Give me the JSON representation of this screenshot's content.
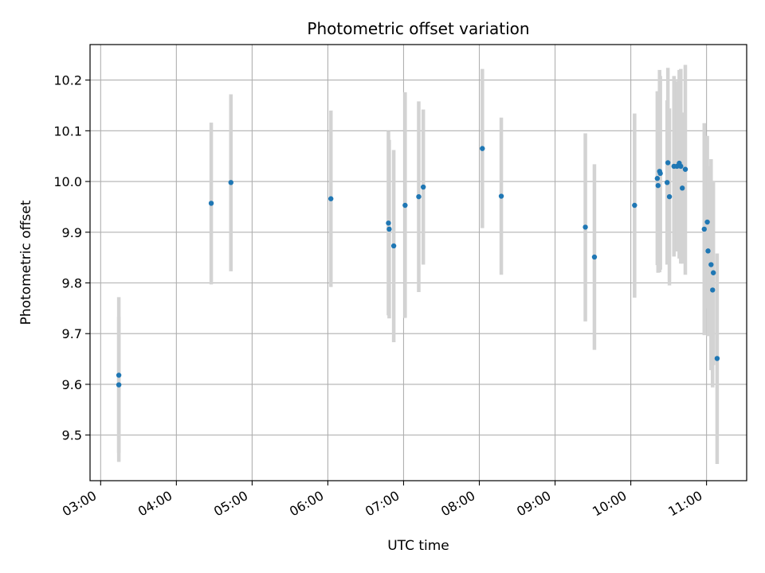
{
  "chart_data": {
    "type": "scatter",
    "title": "Photometric offset variation",
    "xlabel": "UTC time",
    "ylabel": "Photometric offset",
    "x_tick_labels": [
      "03:00",
      "04:00",
      "05:00",
      "06:00",
      "07:00",
      "08:00",
      "09:00",
      "10:00",
      "11:00"
    ],
    "x_tick_values": [
      3,
      4,
      5,
      6,
      7,
      8,
      9,
      10,
      11
    ],
    "y_ticks": [
      9.5,
      9.6,
      9.7,
      9.8,
      9.9,
      10.0,
      10.1,
      10.2
    ],
    "xlim": [
      2.86,
      11.53
    ],
    "ylim": [
      9.41,
      10.27
    ],
    "grid": true,
    "marker_color": "#1f77b4",
    "errorbar_color": "#d3d3d3",
    "points": [
      {
        "x": 3.24,
        "y": 9.618,
        "lo": 9.465,
        "hi": 9.772
      },
      {
        "x": 3.24,
        "y": 9.599,
        "lo": 9.447,
        "hi": 9.733
      },
      {
        "x": 4.46,
        "y": 9.957,
        "lo": 9.797,
        "hi": 10.116
      },
      {
        "x": 4.72,
        "y": 9.998,
        "lo": 9.823,
        "hi": 10.172
      },
      {
        "x": 6.04,
        "y": 9.966,
        "lo": 9.792,
        "hi": 10.14
      },
      {
        "x": 6.8,
        "y": 9.918,
        "lo": 9.736,
        "hi": 10.1
      },
      {
        "x": 6.81,
        "y": 9.906,
        "lo": 9.73,
        "hi": 10.082
      },
      {
        "x": 6.87,
        "y": 9.873,
        "lo": 9.683,
        "hi": 10.062
      },
      {
        "x": 7.02,
        "y": 9.953,
        "lo": 9.731,
        "hi": 10.176
      },
      {
        "x": 7.2,
        "y": 9.97,
        "lo": 9.782,
        "hi": 10.158
      },
      {
        "x": 7.26,
        "y": 9.989,
        "lo": 9.836,
        "hi": 10.142
      },
      {
        "x": 8.04,
        "y": 10.065,
        "lo": 9.908,
        "hi": 10.222
      },
      {
        "x": 8.29,
        "y": 9.971,
        "lo": 9.816,
        "hi": 10.126
      },
      {
        "x": 9.4,
        "y": 9.91,
        "lo": 9.724,
        "hi": 10.095
      },
      {
        "x": 9.52,
        "y": 9.851,
        "lo": 9.668,
        "hi": 10.034
      },
      {
        "x": 10.05,
        "y": 9.953,
        "lo": 9.771,
        "hi": 10.134
      },
      {
        "x": 10.35,
        "y": 10.006,
        "lo": 9.835,
        "hi": 10.178
      },
      {
        "x": 10.36,
        "y": 9.992,
        "lo": 9.82,
        "hi": 10.16
      },
      {
        "x": 10.38,
        "y": 10.02,
        "lo": 9.821,
        "hi": 10.22
      },
      {
        "x": 10.39,
        "y": 10.016,
        "lo": 9.826,
        "hi": 10.208
      },
      {
        "x": 10.48,
        "y": 9.998,
        "lo": 9.836,
        "hi": 10.16
      },
      {
        "x": 10.49,
        "y": 10.037,
        "lo": 9.848,
        "hi": 10.224
      },
      {
        "x": 10.51,
        "y": 9.97,
        "lo": 9.795,
        "hi": 10.144
      },
      {
        "x": 10.57,
        "y": 10.03,
        "lo": 9.852,
        "hi": 10.208
      },
      {
        "x": 10.61,
        "y": 10.03,
        "lo": 9.862,
        "hi": 10.198
      },
      {
        "x": 10.64,
        "y": 10.036,
        "lo": 9.848,
        "hi": 10.22
      },
      {
        "x": 10.66,
        "y": 10.03,
        "lo": 9.838,
        "hi": 10.222
      },
      {
        "x": 10.68,
        "y": 9.987,
        "lo": 9.838,
        "hi": 10.136
      },
      {
        "x": 10.72,
        "y": 10.024,
        "lo": 9.816,
        "hi": 10.23
      },
      {
        "x": 10.97,
        "y": 9.906,
        "lo": 9.697,
        "hi": 10.115
      },
      {
        "x": 11.01,
        "y": 9.92,
        "lo": 9.75,
        "hi": 10.09
      },
      {
        "x": 11.02,
        "y": 9.863,
        "lo": 9.695,
        "hi": 10.03
      },
      {
        "x": 11.06,
        "y": 9.836,
        "lo": 9.628,
        "hi": 10.044
      },
      {
        "x": 11.08,
        "y": 9.786,
        "lo": 9.594,
        "hi": 9.978
      },
      {
        "x": 11.09,
        "y": 9.82,
        "lo": 9.638,
        "hi": 10.0
      },
      {
        "x": 11.14,
        "y": 9.651,
        "lo": 9.443,
        "hi": 9.858
      }
    ]
  }
}
